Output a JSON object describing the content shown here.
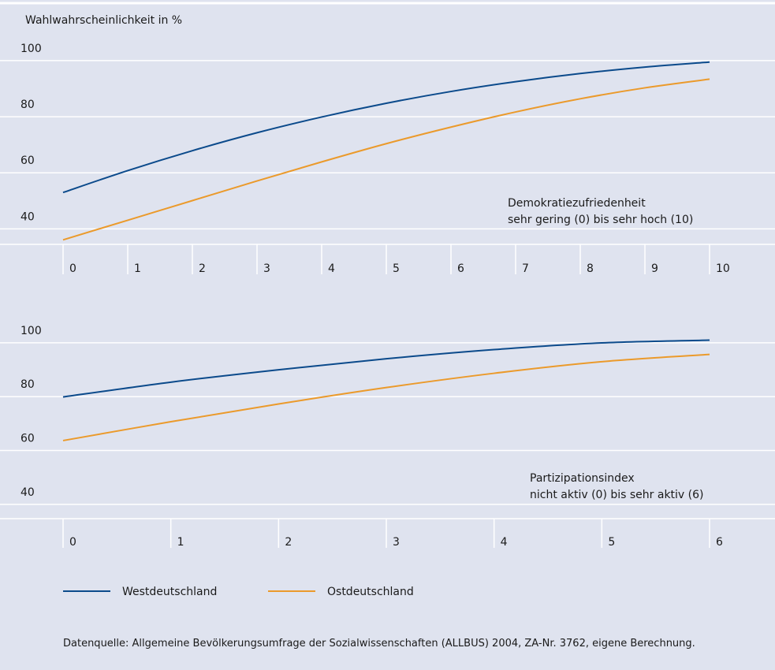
{
  "y_axis_label": "Wahlwahrscheinlichkeit in %",
  "legend": [
    {
      "name": "Westdeutschland",
      "color": "#0b4a8b"
    },
    {
      "name": "Ostdeutschland",
      "color": "#eb9a2b"
    }
  ],
  "source": "Datenquelle: Allgemeine Bevölkerungsumfrage der Sozialwissenschaften (ALLBUS) 2004, ZA-Nr. 3762, eigene Berechnung.",
  "chart_data": [
    {
      "type": "line",
      "ylabel": "Wahlwahrscheinlichkeit in %",
      "xlabel_lines": [
        "Demokratiezufriedenheit",
        "sehr gering (0) bis sehr hoch (10)"
      ],
      "x": [
        0,
        1,
        2,
        3,
        4,
        5,
        6,
        7,
        8,
        9,
        10
      ],
      "x_ticks": [
        "0",
        "1",
        "2",
        "3",
        "4",
        "5",
        "6",
        "7",
        "8",
        "9",
        "10"
      ],
      "y_ticks": [
        "100",
        "80",
        "60",
        "40"
      ],
      "ylim": [
        30,
        107
      ],
      "series": [
        {
          "name": "Westdeutschland",
          "values": [
            48.5,
            56.3,
            63.4,
            69.8,
            75.4,
            80.3,
            84.5,
            88.0,
            90.9,
            93.2,
            95.0
          ]
        },
        {
          "name": "Ostdeutschland",
          "values": [
            31.6,
            38.6,
            45.6,
            52.6,
            59.4,
            65.9,
            71.8,
            77.2,
            81.9,
            85.8,
            88.9
          ]
        }
      ]
    },
    {
      "type": "line",
      "xlabel_lines": [
        "Partizipationsindex",
        "nicht aktiv (0) bis sehr aktiv (6)"
      ],
      "x": [
        0,
        1,
        2,
        3,
        4,
        5,
        6
      ],
      "x_ticks": [
        "0",
        "1",
        "2",
        "3",
        "4",
        "5",
        "6"
      ],
      "y_ticks": [
        "100",
        "80",
        "60",
        "40"
      ],
      "ylim": [
        30,
        107
      ],
      "series": [
        {
          "name": "Westdeutschland",
          "values": [
            75.2,
            80.7,
            85.3,
            89.4,
            92.8,
            95.3,
            96.3
          ]
        },
        {
          "name": "Ostdeutschland",
          "values": [
            59.0,
            66.0,
            72.6,
            78.7,
            84.0,
            88.3,
            91.0
          ]
        }
      ]
    }
  ]
}
